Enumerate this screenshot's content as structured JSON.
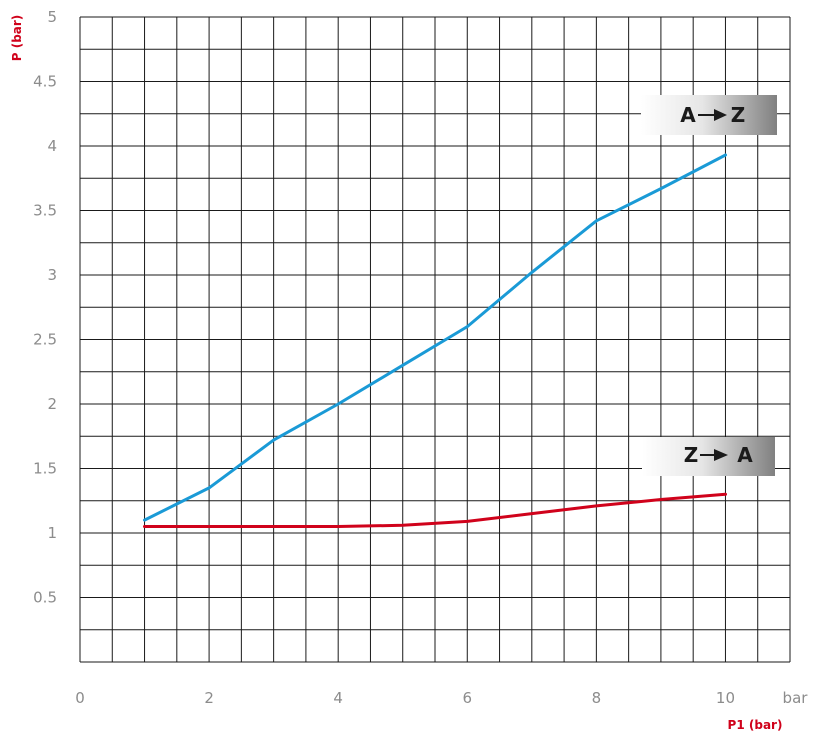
{
  "chart_data": {
    "type": "line",
    "xlabel": "P1 (bar)",
    "ylabel": "P (bar)",
    "x_unit": "bar",
    "xlim": [
      0,
      11
    ],
    "ylim": [
      0,
      5
    ],
    "x_ticks": [
      0,
      2,
      4,
      6,
      8,
      10
    ],
    "y_ticks": [
      0.5,
      1,
      1.5,
      2,
      2.5,
      3,
      3.5,
      4,
      4.5,
      5
    ],
    "x_tick_labels": [
      "0",
      "2",
      "4",
      "6",
      "8",
      "10"
    ],
    "y_tick_labels": [
      "0.5",
      "1",
      "1.5",
      "2",
      "2.5",
      "3",
      "3.5",
      "4",
      "4.5",
      "5"
    ],
    "grid": true,
    "series": [
      {
        "name": "A→Z",
        "color": "#1a9ad6",
        "x": [
          1,
          2,
          3,
          4,
          5,
          6,
          7,
          8,
          9,
          10
        ],
        "values": [
          1.1,
          1.35,
          1.72,
          2.0,
          2.3,
          2.6,
          3.02,
          3.42,
          3.67,
          3.93
        ]
      },
      {
        "name": "Z→A",
        "color": "#d0021b",
        "x": [
          1,
          2,
          3,
          4,
          5,
          6,
          7,
          8,
          9,
          10
        ],
        "values": [
          1.05,
          1.05,
          1.05,
          1.05,
          1.06,
          1.09,
          1.15,
          1.21,
          1.26,
          1.3
        ]
      }
    ],
    "annotations": [
      {
        "text_left": "A",
        "arrow": "→",
        "text_right": "Z"
      },
      {
        "text_left": "Z",
        "arrow": "→",
        "text_right": "A"
      }
    ]
  }
}
